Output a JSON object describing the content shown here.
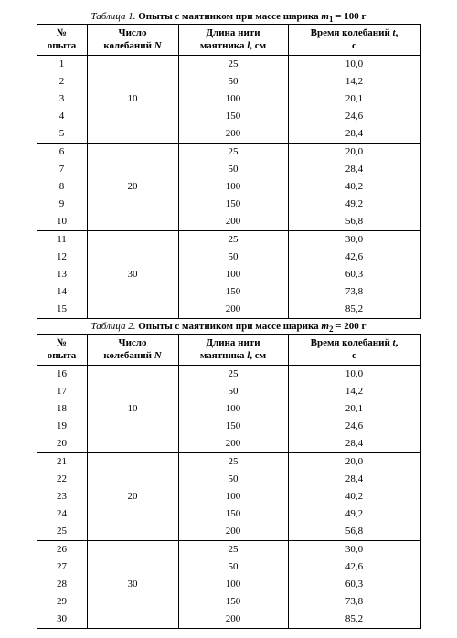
{
  "tables": [
    {
      "caption_prefix": "Таблица 1.",
      "caption_title_a": "Опыты с маятником при массе шарика ",
      "caption_var": "m",
      "caption_sub": "1",
      "caption_title_b": " = 100 г",
      "columns": {
        "c1a": "№",
        "c1b": "опыта",
        "c2a": "Число",
        "c2b_a": "колебаний ",
        "c2b_b": "N",
        "c3a": "Длина нити",
        "c3b_a": "маятника ",
        "c3b_b": "l",
        "c3b_c": ", см",
        "c4a_a": "Время колебаний ",
        "c4a_b": "t",
        "c4a_c": ",",
        "c4b": "с"
      },
      "blocks": [
        {
          "N": "10",
          "rows": [
            {
              "n": "1",
              "l": "25",
              "t": "10,0"
            },
            {
              "n": "2",
              "l": "50",
              "t": "14,2"
            },
            {
              "n": "3",
              "l": "100",
              "t": "20,1"
            },
            {
              "n": "4",
              "l": "150",
              "t": "24,6"
            },
            {
              "n": "5",
              "l": "200",
              "t": "28,4"
            }
          ]
        },
        {
          "N": "20",
          "rows": [
            {
              "n": "6",
              "l": "25",
              "t": "20,0"
            },
            {
              "n": "7",
              "l": "50",
              "t": "28,4"
            },
            {
              "n": "8",
              "l": "100",
              "t": "40,2"
            },
            {
              "n": "9",
              "l": "150",
              "t": "49,2"
            },
            {
              "n": "10",
              "l": "200",
              "t": "56,8"
            }
          ]
        },
        {
          "N": "30",
          "rows": [
            {
              "n": "11",
              "l": "25",
              "t": "30,0"
            },
            {
              "n": "12",
              "l": "50",
              "t": "42,6"
            },
            {
              "n": "13",
              "l": "100",
              "t": "60,3"
            },
            {
              "n": "14",
              "l": "150",
              "t": "73,8"
            },
            {
              "n": "15",
              "l": "200",
              "t": "85,2"
            }
          ]
        }
      ]
    },
    {
      "caption_prefix": "Таблица 2.",
      "caption_title_a": "Опыты с маятником при массе шарика ",
      "caption_var": "m",
      "caption_sub": "2",
      "caption_title_b": " = 200 г",
      "columns": {
        "c1a": "№",
        "c1b": "опыта",
        "c2a": "Число",
        "c2b_a": "колебаний ",
        "c2b_b": "N",
        "c3a": "Длина нити",
        "c3b_a": "маятника ",
        "c3b_b": "l",
        "c3b_c": ", см",
        "c4a_a": "Время колебаний ",
        "c4a_b": "t",
        "c4a_c": ",",
        "c4b": "с"
      },
      "blocks": [
        {
          "N": "10",
          "rows": [
            {
              "n": "16",
              "l": "25",
              "t": "10,0"
            },
            {
              "n": "17",
              "l": "50",
              "t": "14,2"
            },
            {
              "n": "18",
              "l": "100",
              "t": "20,1"
            },
            {
              "n": "19",
              "l": "150",
              "t": "24,6"
            },
            {
              "n": "20",
              "l": "200",
              "t": "28,4"
            }
          ]
        },
        {
          "N": "20",
          "rows": [
            {
              "n": "21",
              "l": "25",
              "t": "20,0"
            },
            {
              "n": "22",
              "l": "50",
              "t": "28,4"
            },
            {
              "n": "23",
              "l": "100",
              "t": "40,2"
            },
            {
              "n": "24",
              "l": "150",
              "t": "49,2"
            },
            {
              "n": "25",
              "l": "200",
              "t": "56,8"
            }
          ]
        },
        {
          "N": "30",
          "rows": [
            {
              "n": "26",
              "l": "25",
              "t": "30,0"
            },
            {
              "n": "27",
              "l": "50",
              "t": "42,6"
            },
            {
              "n": "28",
              "l": "100",
              "t": "60,3"
            },
            {
              "n": "29",
              "l": "150",
              "t": "73,8"
            },
            {
              "n": "30",
              "l": "200",
              "t": "85,2"
            }
          ]
        }
      ]
    }
  ]
}
